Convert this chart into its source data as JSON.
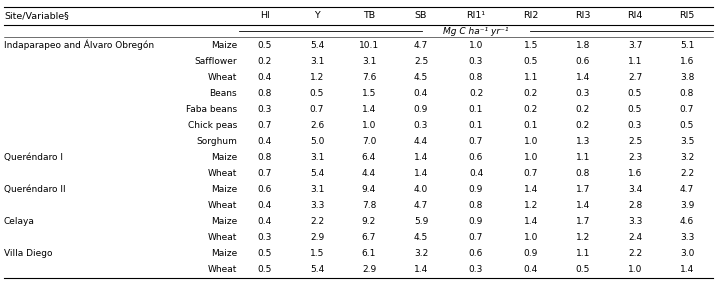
{
  "headers": [
    "Site/Variable§",
    "",
    "HI",
    "Y",
    "TB",
    "SB",
    "RI1¹",
    "RI2",
    "RI3",
    "RI4",
    "RI5"
  ],
  "subheader": "Mg C ha⁻¹ yr⁻¹",
  "rows": [
    [
      "Indaparapeo and Álvaro Obregón",
      "Maize",
      "0.5",
      "5.4",
      "10.1",
      "4.7",
      "1.0",
      "1.5",
      "1.8",
      "3.7",
      "5.1"
    ],
    [
      "",
      "Safflower",
      "0.2",
      "3.1",
      "3.1",
      "2.5",
      "0.3",
      "0.5",
      "0.6",
      "1.1",
      "1.6"
    ],
    [
      "",
      "Wheat",
      "0.4",
      "1.2",
      "7.6",
      "4.5",
      "0.8",
      "1.1",
      "1.4",
      "2.7",
      "3.8"
    ],
    [
      "",
      "Beans",
      "0.8",
      "0.5",
      "1.5",
      "0.4",
      "0.2",
      "0.2",
      "0.3",
      "0.5",
      "0.8"
    ],
    [
      "",
      "Faba beans",
      "0.3",
      "0.7",
      "1.4",
      "0.9",
      "0.1",
      "0.2",
      "0.2",
      "0.5",
      "0.7"
    ],
    [
      "",
      "Chick peas",
      "0.7",
      "2.6",
      "1.0",
      "0.3",
      "0.1",
      "0.1",
      "0.2",
      "0.3",
      "0.5"
    ],
    [
      "",
      "Sorghum",
      "0.4",
      "5.0",
      "7.0",
      "4.4",
      "0.7",
      "1.0",
      "1.3",
      "2.5",
      "3.5"
    ],
    [
      "Queréndaro I",
      "Maize",
      "0.8",
      "3.1",
      "6.4",
      "1.4",
      "0.6",
      "1.0",
      "1.1",
      "2.3",
      "3.2"
    ],
    [
      "",
      "Wheat",
      "0.7",
      "5.4",
      "4.4",
      "1.4",
      "0.4",
      "0.7",
      "0.8",
      "1.6",
      "2.2"
    ],
    [
      "Queréndaro II",
      "Maize",
      "0.6",
      "3.1",
      "9.4",
      "4.0",
      "0.9",
      "1.4",
      "1.7",
      "3.4",
      "4.7"
    ],
    [
      "",
      "Wheat",
      "0.4",
      "3.3",
      "7.8",
      "4.7",
      "0.8",
      "1.2",
      "1.4",
      "2.8",
      "3.9"
    ],
    [
      "Celaya",
      "Maize",
      "0.4",
      "2.2",
      "9.2",
      "5.9",
      "0.9",
      "1.4",
      "1.7",
      "3.3",
      "4.6"
    ],
    [
      "",
      "Wheat",
      "0.3",
      "2.9",
      "6.7",
      "4.5",
      "0.7",
      "1.0",
      "1.2",
      "2.4",
      "3.3"
    ],
    [
      "Villa Diego",
      "Maize",
      "0.5",
      "1.5",
      "6.1",
      "3.2",
      "0.6",
      "0.9",
      "1.1",
      "2.2",
      "3.0"
    ],
    [
      "",
      "Wheat",
      "0.5",
      "5.4",
      "2.9",
      "1.4",
      "0.3",
      "0.4",
      "0.5",
      "1.0",
      "1.4"
    ]
  ],
  "bg_color": "#ffffff",
  "text_color": "#000000",
  "font_size": 6.5,
  "header_font_size": 6.8
}
